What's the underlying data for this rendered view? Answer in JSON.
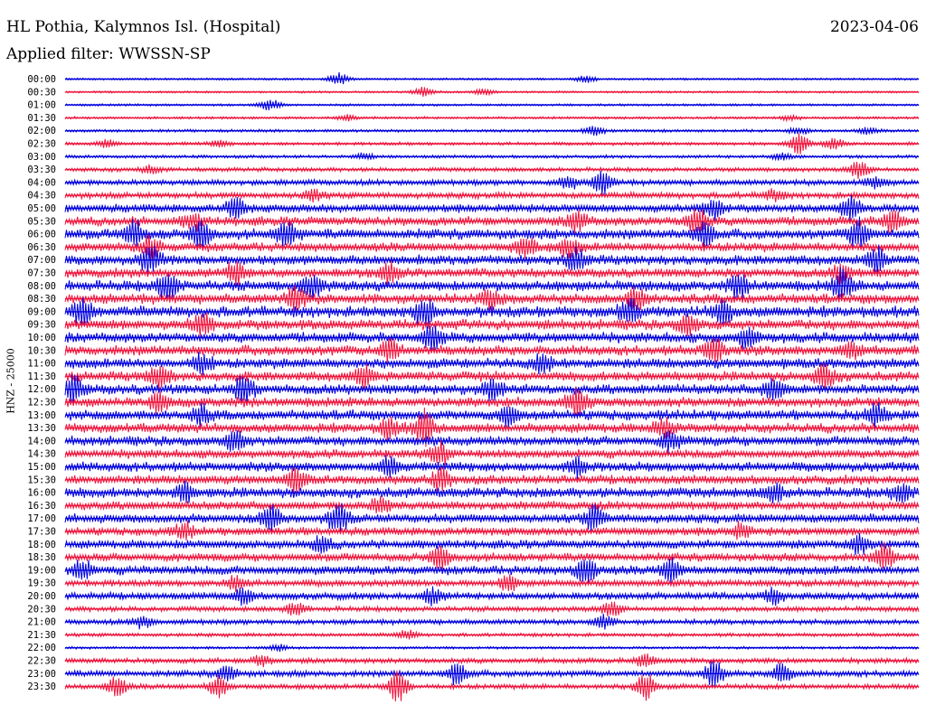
{
  "header": {
    "station": "HL Pothia, Kalymnos Isl. (Hospital)",
    "date": "2023-04-06",
    "filter": "Applied filter: WWSSN-SP",
    "channel_label": "HNZ - 25000"
  },
  "chart_data": {
    "type": "line",
    "title": "HL Pothia, Kalymnos Isl. (Hospital)",
    "subtitle": "Applied filter: WWSSN-SP",
    "ylabel": "HNZ - 25000",
    "xlabel": "",
    "grid": false,
    "colors": [
      "#0000e0",
      "#f0143c"
    ],
    "rows": [
      {
        "label": "00:00",
        "activity": 0.1,
        "events": [
          [
            0.32,
            0.9
          ],
          [
            0.61,
            0.5
          ]
        ]
      },
      {
        "label": "00:30",
        "activity": 0.1,
        "events": [
          [
            0.42,
            0.7
          ],
          [
            0.49,
            0.4
          ]
        ]
      },
      {
        "label": "01:00",
        "activity": 0.12,
        "events": [
          [
            0.24,
            0.8
          ]
        ]
      },
      {
        "label": "01:30",
        "activity": 0.14,
        "events": [
          [
            0.33,
            0.4
          ],
          [
            0.85,
            0.3
          ]
        ]
      },
      {
        "label": "02:00",
        "activity": 0.18,
        "events": [
          [
            0.62,
            0.6
          ],
          [
            0.86,
            0.5
          ],
          [
            0.94,
            0.4
          ]
        ]
      },
      {
        "label": "02:30",
        "activity": 0.22,
        "events": [
          [
            0.05,
            0.6
          ],
          [
            0.18,
            0.4
          ],
          [
            0.86,
            1.5
          ],
          [
            0.9,
            0.8
          ]
        ]
      },
      {
        "label": "03:00",
        "activity": 0.2,
        "events": [
          [
            0.35,
            0.4
          ],
          [
            0.84,
            0.5
          ]
        ]
      },
      {
        "label": "03:30",
        "activity": 0.3,
        "events": [
          [
            0.1,
            0.5
          ],
          [
            0.93,
            1.2
          ]
        ]
      },
      {
        "label": "04:00",
        "activity": 0.45,
        "events": [
          [
            0.59,
            1.0
          ],
          [
            0.63,
            1.6
          ],
          [
            0.95,
            0.8
          ]
        ]
      },
      {
        "label": "04:30",
        "activity": 0.5,
        "events": [
          [
            0.29,
            0.8
          ],
          [
            0.83,
            0.7
          ]
        ]
      },
      {
        "label": "05:00",
        "activity": 0.7,
        "events": [
          [
            0.2,
            1.4
          ],
          [
            0.76,
            1.3
          ],
          [
            0.92,
            1.6
          ]
        ]
      },
      {
        "label": "05:30",
        "activity": 0.8,
        "events": [
          [
            0.15,
            1.0
          ],
          [
            0.6,
            1.3
          ],
          [
            0.74,
            1.8
          ],
          [
            0.97,
            1.6
          ]
        ]
      },
      {
        "label": "06:00",
        "activity": 0.9,
        "events": [
          [
            0.08,
            1.8
          ],
          [
            0.16,
            2.2
          ],
          [
            0.26,
            1.6
          ],
          [
            0.75,
            1.7
          ],
          [
            0.93,
            2.2
          ]
        ]
      },
      {
        "label": "06:30",
        "activity": 0.8,
        "events": [
          [
            0.1,
            1.5
          ],
          [
            0.54,
            1.4
          ],
          [
            0.59,
            1.2
          ]
        ]
      },
      {
        "label": "07:00",
        "activity": 0.85,
        "events": [
          [
            0.1,
            2.0
          ],
          [
            0.6,
            1.4
          ],
          [
            0.95,
            1.8
          ]
        ]
      },
      {
        "label": "07:30",
        "activity": 0.8,
        "events": [
          [
            0.2,
            1.6
          ],
          [
            0.38,
            1.4
          ],
          [
            0.91,
            1.2
          ]
        ]
      },
      {
        "label": "08:00",
        "activity": 0.95,
        "events": [
          [
            0.12,
            2.0
          ],
          [
            0.29,
            1.5
          ],
          [
            0.79,
            1.5
          ],
          [
            0.91,
            2.0
          ]
        ]
      },
      {
        "label": "08:30",
        "activity": 0.9,
        "events": [
          [
            0.27,
            1.6
          ],
          [
            0.5,
            1.3
          ],
          [
            0.67,
            1.4
          ]
        ]
      },
      {
        "label": "09:00",
        "activity": 1.0,
        "events": [
          [
            0.02,
            1.8
          ],
          [
            0.42,
            1.8
          ],
          [
            0.66,
            1.5
          ],
          [
            0.77,
            1.6
          ]
        ]
      },
      {
        "label": "09:30",
        "activity": 0.9,
        "events": [
          [
            0.16,
            1.4
          ],
          [
            0.73,
            1.2
          ]
        ]
      },
      {
        "label": "10:00",
        "activity": 0.9,
        "events": [
          [
            0.43,
            1.6
          ],
          [
            0.8,
            1.5
          ]
        ]
      },
      {
        "label": "10:30",
        "activity": 0.9,
        "events": [
          [
            0.38,
            1.6
          ],
          [
            0.76,
            1.8
          ],
          [
            0.92,
            1.3
          ]
        ]
      },
      {
        "label": "11:00",
        "activity": 0.9,
        "events": [
          [
            0.16,
            1.3
          ],
          [
            0.56,
            1.2
          ]
        ]
      },
      {
        "label": "11:30",
        "activity": 0.85,
        "events": [
          [
            0.11,
            1.6
          ],
          [
            0.35,
            1.3
          ],
          [
            0.89,
            1.6
          ]
        ]
      },
      {
        "label": "12:00",
        "activity": 0.9,
        "events": [
          [
            0.01,
            1.8
          ],
          [
            0.21,
            1.9
          ],
          [
            0.5,
            1.2
          ],
          [
            0.83,
            1.5
          ]
        ]
      },
      {
        "label": "12:30",
        "activity": 0.85,
        "events": [
          [
            0.6,
            2.0
          ],
          [
            0.11,
            1.2
          ]
        ]
      },
      {
        "label": "13:00",
        "activity": 0.9,
        "events": [
          [
            0.16,
            1.2
          ],
          [
            0.52,
            1.1
          ],
          [
            0.95,
            1.3
          ]
        ]
      },
      {
        "label": "13:30",
        "activity": 0.85,
        "events": [
          [
            0.38,
            1.3
          ],
          [
            0.42,
            2.4
          ],
          [
            0.7,
            1.2
          ]
        ]
      },
      {
        "label": "14:00",
        "activity": 0.85,
        "events": [
          [
            0.2,
            1.4
          ],
          [
            0.71,
            1.3
          ]
        ]
      },
      {
        "label": "14:30",
        "activity": 0.75,
        "events": [
          [
            0.44,
            1.5
          ]
        ]
      },
      {
        "label": "15:00",
        "activity": 0.85,
        "events": [
          [
            0.38,
            1.2
          ],
          [
            0.6,
            1.2
          ]
        ]
      },
      {
        "label": "15:30",
        "activity": 0.8,
        "events": [
          [
            0.27,
            1.5
          ],
          [
            0.44,
            1.3
          ]
        ]
      },
      {
        "label": "16:00",
        "activity": 0.9,
        "events": [
          [
            0.14,
            1.2
          ],
          [
            0.83,
            1.2
          ],
          [
            0.98,
            1.2
          ]
        ]
      },
      {
        "label": "16:30",
        "activity": 0.75,
        "events": [
          [
            0.37,
            1.1
          ]
        ]
      },
      {
        "label": "17:00",
        "activity": 0.8,
        "events": [
          [
            0.24,
            1.8
          ],
          [
            0.32,
            2.0
          ],
          [
            0.62,
            1.6
          ]
        ]
      },
      {
        "label": "17:30",
        "activity": 0.7,
        "events": [
          [
            0.14,
            1.1
          ],
          [
            0.79,
            1.0
          ]
        ]
      },
      {
        "label": "18:00",
        "activity": 0.75,
        "events": [
          [
            0.3,
            1.0
          ],
          [
            0.93,
            1.2
          ]
        ]
      },
      {
        "label": "18:30",
        "activity": 0.7,
        "events": [
          [
            0.44,
            1.8
          ],
          [
            0.96,
            1.9
          ]
        ]
      },
      {
        "label": "19:00",
        "activity": 0.8,
        "events": [
          [
            0.02,
            1.3
          ],
          [
            0.61,
            2.0
          ],
          [
            0.71,
            1.4
          ]
        ]
      },
      {
        "label": "19:30",
        "activity": 0.55,
        "events": [
          [
            0.2,
            1.0
          ],
          [
            0.52,
            1.0
          ]
        ]
      },
      {
        "label": "20:00",
        "activity": 0.6,
        "events": [
          [
            0.21,
            1.1
          ],
          [
            0.43,
            1.1
          ],
          [
            0.83,
            1.0
          ]
        ]
      },
      {
        "label": "20:30",
        "activity": 0.4,
        "events": [
          [
            0.64,
            1.0
          ],
          [
            0.27,
            0.9
          ]
        ]
      },
      {
        "label": "21:00",
        "activity": 0.4,
        "events": [
          [
            0.09,
            0.9
          ],
          [
            0.63,
            1.0
          ]
        ]
      },
      {
        "label": "21:30",
        "activity": 0.25,
        "events": [
          [
            0.4,
            0.6
          ]
        ]
      },
      {
        "label": "22:00",
        "activity": 0.15,
        "events": [
          [
            0.25,
            0.4
          ]
        ]
      },
      {
        "label": "22:30",
        "activity": 0.4,
        "events": [
          [
            0.23,
            0.8
          ],
          [
            0.68,
            1.0
          ]
        ]
      },
      {
        "label": "23:00",
        "activity": 0.5,
        "events": [
          [
            0.19,
            1.0
          ],
          [
            0.46,
            1.6
          ],
          [
            0.76,
            1.9
          ],
          [
            0.84,
            1.4
          ]
        ]
      },
      {
        "label": "23:30",
        "activity": 0.4,
        "events": [
          [
            0.06,
            1.3
          ],
          [
            0.18,
            1.6
          ],
          [
            0.39,
            2.4
          ],
          [
            0.68,
            2.0
          ]
        ]
      }
    ]
  }
}
